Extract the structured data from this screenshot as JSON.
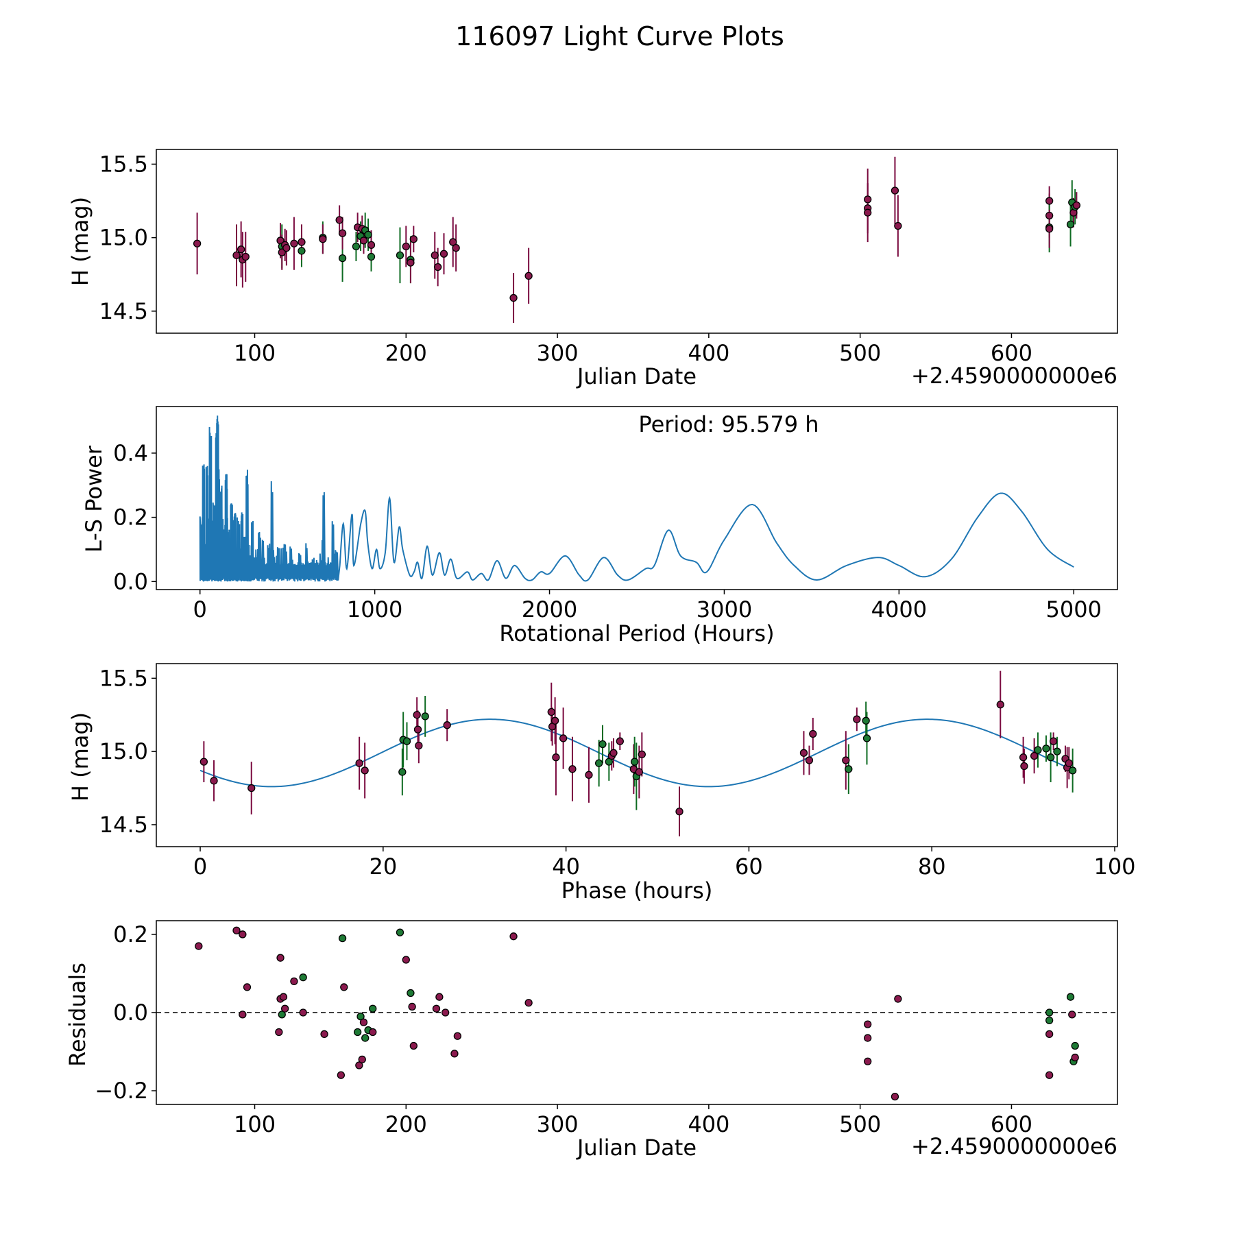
{
  "figure_title": "116097 Light Curve Plots",
  "colors": {
    "maroon": "#8b1a4e",
    "green": "#1e7a35",
    "curve": "#1f77b4",
    "maroon_err": "#7a0a3f",
    "green_err": "#0e6b22"
  },
  "chart_data": [
    {
      "id": "lightcurve",
      "type": "scatter",
      "xlabel": "Julian Date",
      "ylabel": "H (mag)",
      "offset_label": "+2.4590000000e6",
      "xlim": [
        35,
        670
      ],
      "ylim": [
        14.35,
        15.6
      ],
      "xticks": [
        100,
        200,
        300,
        400,
        500,
        600
      ],
      "yticks": [
        14.5,
        15.0,
        15.5
      ],
      "ytick_labels": [
        "14.5",
        "15.0",
        "15.5"
      ],
      "points": [
        [
          62,
          14.96,
          0.21,
          "m"
        ],
        [
          88,
          14.88,
          0.21,
          "m"
        ],
        [
          91,
          14.92,
          0.19,
          "m"
        ],
        [
          92,
          14.85,
          0.19,
          "m"
        ],
        [
          94,
          14.87,
          0.17,
          "m"
        ],
        [
          117,
          14.98,
          0.12,
          "m"
        ],
        [
          118,
          14.94,
          0.15,
          "g"
        ],
        [
          118,
          14.9,
          0.12,
          "m"
        ],
        [
          120,
          14.95,
          0.11,
          "m"
        ],
        [
          121,
          14.93,
          0.12,
          "m"
        ],
        [
          126,
          14.96,
          0.18,
          "m"
        ],
        [
          131,
          14.91,
          0.11,
          "g"
        ],
        [
          131,
          14.97,
          0.12,
          "m"
        ],
        [
          145,
          15.0,
          0.11,
          "g"
        ],
        [
          145,
          14.99,
          0.1,
          "m"
        ],
        [
          156,
          15.12,
          0.1,
          "m"
        ],
        [
          158,
          14.86,
          0.16,
          "g"
        ],
        [
          158,
          15.03,
          0.11,
          "m"
        ],
        [
          167,
          14.94,
          0.1,
          "g"
        ],
        [
          168,
          15.07,
          0.1,
          "m"
        ],
        [
          170,
          15.01,
          0.1,
          "g"
        ],
        [
          171,
          15.06,
          0.09,
          "m"
        ],
        [
          172,
          14.98,
          0.09,
          "m"
        ],
        [
          173,
          15.05,
          0.12,
          "g"
        ],
        [
          175,
          15.02,
          0.11,
          "g"
        ],
        [
          177,
          14.87,
          0.1,
          "g"
        ],
        [
          177,
          14.95,
          0.1,
          "m"
        ],
        [
          196,
          14.88,
          0.19,
          "g"
        ],
        [
          200,
          14.94,
          0.14,
          "m"
        ],
        [
          203,
          14.85,
          0.16,
          "g"
        ],
        [
          203,
          14.83,
          0.14,
          "m"
        ],
        [
          205,
          14.99,
          0.09,
          "m"
        ],
        [
          219,
          14.88,
          0.16,
          "m"
        ],
        [
          221,
          14.8,
          0.13,
          "m"
        ],
        [
          225,
          14.89,
          0.14,
          "m"
        ],
        [
          231,
          14.97,
          0.17,
          "m"
        ],
        [
          233,
          14.93,
          0.16,
          "m"
        ],
        [
          271,
          14.59,
          0.17,
          "m"
        ],
        [
          281,
          14.74,
          0.19,
          "m"
        ],
        [
          505,
          15.26,
          0.21,
          "m"
        ],
        [
          505,
          15.2,
          0.17,
          "m"
        ],
        [
          505,
          15.17,
          0.2,
          "m"
        ],
        [
          523,
          15.32,
          0.23,
          "m"
        ],
        [
          525,
          15.08,
          0.21,
          "m"
        ],
        [
          625,
          15.25,
          0.1,
          "m"
        ],
        [
          625,
          15.15,
          0.15,
          "m"
        ],
        [
          625,
          15.07,
          0.17,
          "g"
        ],
        [
          625,
          15.06,
          0.13,
          "m"
        ],
        [
          639,
          15.09,
          0.15,
          "g"
        ],
        [
          640,
          15.24,
          0.15,
          "g"
        ],
        [
          641,
          15.17,
          0.1,
          "m"
        ],
        [
          642,
          15.21,
          0.12,
          "g"
        ],
        [
          643,
          15.22,
          0.09,
          "m"
        ]
      ]
    },
    {
      "id": "periodogram",
      "type": "line",
      "xlabel": "Rotational Period (Hours)",
      "ylabel": "L-S Power",
      "annotation": "Period: 95.579 h",
      "xlim": [
        -250,
        5250
      ],
      "ylim": [
        -0.025,
        0.545
      ],
      "xticks": [
        0,
        1000,
        2000,
        3000,
        4000,
        5000
      ],
      "yticks": [
        0.0,
        0.2,
        0.4
      ],
      "ytick_labels": [
        "0.0",
        "0.2",
        "0.4"
      ],
      "peaks": [
        [
          20,
          0.37
        ],
        [
          40,
          0.36
        ],
        [
          60,
          0.49
        ],
        [
          80,
          0.25
        ],
        [
          95.6,
          0.48
        ],
        [
          105,
          0.35
        ],
        [
          120,
          0.3
        ],
        [
          100,
          0.52
        ],
        [
          150,
          0.34
        ],
        [
          180,
          0.25
        ],
        [
          200,
          0.22
        ],
        [
          240,
          0.22
        ],
        [
          270,
          0.35
        ],
        [
          300,
          0.21
        ],
        [
          340,
          0.16
        ],
        [
          360,
          0.13
        ],
        [
          390,
          0.12
        ],
        [
          410,
          0.32
        ],
        [
          450,
          0.12
        ],
        [
          490,
          0.1
        ],
        [
          520,
          0.11
        ],
        [
          570,
          0.09
        ],
        [
          610,
          0.12
        ],
        [
          650,
          0.08
        ],
        [
          700,
          0.15
        ],
        [
          710,
          0.29
        ],
        [
          760,
          0.2
        ],
        [
          780,
          0.1
        ]
      ],
      "smooth": [
        [
          800,
          0.05
        ],
        [
          820,
          0.18
        ],
        [
          840,
          0.04
        ],
        [
          870,
          0.21
        ],
        [
          880,
          0.05
        ],
        [
          920,
          0.18
        ],
        [
          945,
          0.22
        ],
        [
          960,
          0.12
        ],
        [
          985,
          0.04
        ],
        [
          1010,
          0.1
        ],
        [
          1030,
          0.04
        ],
        [
          1060,
          0.09
        ],
        [
          1085,
          0.26
        ],
        [
          1110,
          0.06
        ],
        [
          1140,
          0.17
        ],
        [
          1160,
          0.1
        ],
        [
          1200,
          0.02
        ],
        [
          1225,
          0.03
        ],
        [
          1245,
          0.06
        ],
        [
          1270,
          0.01
        ],
        [
          1300,
          0.11
        ],
        [
          1330,
          0.02
        ],
        [
          1370,
          0.09
        ],
        [
          1400,
          0.02
        ],
        [
          1435,
          0.07
        ],
        [
          1470,
          0.01
        ],
        [
          1530,
          0.03
        ],
        [
          1560,
          0.005
        ],
        [
          1610,
          0.025
        ],
        [
          1650,
          0.005
        ],
        [
          1700,
          0.065
        ],
        [
          1750,
          0.01
        ],
        [
          1800,
          0.05
        ],
        [
          1860,
          0.01
        ],
        [
          1900,
          0.005
        ],
        [
          1950,
          0.03
        ],
        [
          2000,
          0.025
        ],
        [
          2090,
          0.08
        ],
        [
          2170,
          0.02
        ],
        [
          2220,
          0.005
        ],
        [
          2310,
          0.075
        ],
        [
          2390,
          0.02
        ],
        [
          2450,
          0.005
        ],
        [
          2550,
          0.04
        ],
        [
          2600,
          0.05
        ],
        [
          2680,
          0.16
        ],
        [
          2750,
          0.08
        ],
        [
          2840,
          0.06
        ],
        [
          2900,
          0.03
        ],
        [
          3000,
          0.13
        ],
        [
          3160,
          0.24
        ],
        [
          3300,
          0.12
        ],
        [
          3400,
          0.05
        ],
        [
          3530,
          0.005
        ],
        [
          3700,
          0.05
        ],
        [
          3880,
          0.075
        ],
        [
          4000,
          0.05
        ],
        [
          4150,
          0.015
        ],
        [
          4300,
          0.07
        ],
        [
          4450,
          0.2
        ],
        [
          4580,
          0.275
        ],
        [
          4700,
          0.22
        ],
        [
          4850,
          0.1
        ],
        [
          5000,
          0.045
        ]
      ]
    },
    {
      "id": "phasefold",
      "type": "scatter",
      "xlabel": "Phase (hours)",
      "ylabel": "H (mag)",
      "xlim": [
        -4.8,
        100.3
      ],
      "ylim": [
        14.35,
        15.6
      ],
      "xticks": [
        0,
        20,
        40,
        60,
        80,
        100
      ],
      "yticks": [
        14.5,
        15.0,
        15.5
      ],
      "ytick_labels": [
        "14.5",
        "15.0",
        "15.5"
      ],
      "model": {
        "mean": 14.99,
        "amplitude": 0.23,
        "phase_peak": 31.7,
        "period": 47.8,
        "x_range": [
          0,
          95.6
        ]
      },
      "points": [
        [
          0.4,
          14.93,
          0.14,
          "m"
        ],
        [
          1.5,
          14.8,
          0.14,
          "m"
        ],
        [
          5.6,
          14.75,
          0.18,
          "m"
        ],
        [
          17.4,
          14.92,
          0.18,
          "m"
        ],
        [
          18.0,
          14.87,
          0.19,
          "m"
        ],
        [
          22.1,
          14.86,
          0.16,
          "g"
        ],
        [
          22.2,
          15.08,
          0.19,
          "g"
        ],
        [
          22.6,
          15.07,
          0.13,
          "g"
        ],
        [
          23.7,
          15.25,
          0.12,
          "m"
        ],
        [
          23.8,
          15.15,
          0.13,
          "m"
        ],
        [
          23.9,
          15.04,
          0.12,
          "m"
        ],
        [
          24.6,
          15.24,
          0.14,
          "g"
        ],
        [
          27.0,
          15.18,
          0.11,
          "m"
        ],
        [
          38.4,
          15.27,
          0.2,
          "m"
        ],
        [
          38.5,
          15.17,
          0.13,
          "m"
        ],
        [
          38.8,
          15.21,
          0.16,
          "m"
        ],
        [
          38.9,
          14.96,
          0.26,
          "m"
        ],
        [
          39.7,
          15.09,
          0.21,
          "m"
        ],
        [
          40.7,
          14.88,
          0.22,
          "m"
        ],
        [
          42.5,
          14.84,
          0.19,
          "m"
        ],
        [
          43.6,
          14.92,
          0.16,
          "g"
        ],
        [
          44.0,
          15.05,
          0.13,
          "g"
        ],
        [
          44.7,
          14.93,
          0.13,
          "g"
        ],
        [
          45.0,
          14.97,
          0.1,
          "m"
        ],
        [
          45.2,
          14.99,
          0.1,
          "m"
        ],
        [
          45.9,
          15.07,
          0.06,
          "m"
        ],
        [
          47.4,
          14.88,
          0.17,
          "m"
        ],
        [
          47.5,
          14.93,
          0.17,
          "g"
        ],
        [
          47.7,
          14.83,
          0.23,
          "g"
        ],
        [
          48.0,
          14.86,
          0.18,
          "m"
        ],
        [
          48.3,
          14.98,
          0.15,
          "m"
        ],
        [
          52.4,
          14.59,
          0.17,
          "m"
        ],
        [
          66.0,
          14.99,
          0.15,
          "m"
        ],
        [
          66.6,
          14.94,
          0.1,
          "m"
        ],
        [
          67.0,
          15.12,
          0.11,
          "m"
        ],
        [
          70.6,
          14.94,
          0.2,
          "m"
        ],
        [
          70.9,
          14.88,
          0.17,
          "g"
        ],
        [
          71.8,
          15.22,
          0.08,
          "m"
        ],
        [
          72.8,
          15.21,
          0.13,
          "g"
        ],
        [
          72.9,
          15.09,
          0.18,
          "g"
        ],
        [
          87.5,
          15.32,
          0.23,
          "m"
        ],
        [
          90.0,
          14.96,
          0.14,
          "m"
        ],
        [
          90.1,
          14.9,
          0.12,
          "m"
        ],
        [
          91.2,
          14.97,
          0.12,
          "m"
        ],
        [
          91.6,
          15.01,
          0.12,
          "g"
        ],
        [
          92.5,
          15.02,
          0.09,
          "g"
        ],
        [
          93.0,
          14.96,
          0.17,
          "g"
        ],
        [
          93.3,
          15.07,
          0.06,
          "m"
        ],
        [
          93.7,
          15.0,
          0.1,
          "g"
        ],
        [
          94.6,
          14.95,
          0.09,
          "m"
        ],
        [
          94.8,
          14.89,
          0.14,
          "m"
        ],
        [
          95.0,
          14.92,
          0.11,
          "m"
        ],
        [
          95.4,
          14.87,
          0.15,
          "g"
        ]
      ]
    },
    {
      "id": "residuals",
      "type": "scatter",
      "xlabel": "Julian Date",
      "ylabel": "Residuals",
      "offset_label": "+2.4590000000e6",
      "xlim": [
        35,
        670
      ],
      "ylim": [
        -0.235,
        0.235
      ],
      "xticks": [
        100,
        200,
        300,
        400,
        500,
        600
      ],
      "yticks": [
        -0.2,
        0.0,
        0.2
      ],
      "ytick_labels": [
        "−0.2",
        "0.0",
        "0.2"
      ],
      "zero_line": 0,
      "points": [
        [
          63,
          0.17,
          "m"
        ],
        [
          88,
          0.21,
          "m"
        ],
        [
          92,
          0.2,
          "m"
        ],
        [
          92,
          -0.005,
          "m"
        ],
        [
          95,
          0.065,
          "m"
        ],
        [
          116,
          -0.05,
          "m"
        ],
        [
          117,
          0.14,
          "m"
        ],
        [
          117,
          0.035,
          "m"
        ],
        [
          118,
          -0.005,
          "g"
        ],
        [
          119,
          0.04,
          "m"
        ],
        [
          120,
          0.01,
          "m"
        ],
        [
          126,
          0.08,
          "m"
        ],
        [
          132,
          0.09,
          "g"
        ],
        [
          132,
          0.0,
          "m"
        ],
        [
          146,
          -0.055,
          "m"
        ],
        [
          157,
          -0.16,
          "m"
        ],
        [
          158,
          0.19,
          "g"
        ],
        [
          159,
          0.065,
          "m"
        ],
        [
          168,
          -0.05,
          "g"
        ],
        [
          169,
          -0.135,
          "m"
        ],
        [
          170,
          -0.01,
          "g"
        ],
        [
          171,
          -0.12,
          "m"
        ],
        [
          172,
          -0.025,
          "m"
        ],
        [
          173,
          -0.065,
          "g"
        ],
        [
          175,
          -0.045,
          "g"
        ],
        [
          178,
          0.01,
          "g"
        ],
        [
          178,
          -0.05,
          "m"
        ],
        [
          196,
          0.205,
          "g"
        ],
        [
          200,
          0.135,
          "m"
        ],
        [
          203,
          0.05,
          "g"
        ],
        [
          204,
          0.015,
          "m"
        ],
        [
          205,
          -0.085,
          "m"
        ],
        [
          220,
          0.01,
          "m"
        ],
        [
          222,
          0.04,
          "m"
        ],
        [
          226,
          0.0,
          "m"
        ],
        [
          232,
          -0.105,
          "m"
        ],
        [
          234,
          -0.06,
          "m"
        ],
        [
          271,
          0.195,
          "m"
        ],
        [
          281,
          0.025,
          "m"
        ],
        [
          505,
          -0.03,
          "m"
        ],
        [
          505,
          -0.065,
          "m"
        ],
        [
          505,
          -0.125,
          "m"
        ],
        [
          523,
          -0.215,
          "m"
        ],
        [
          525,
          0.035,
          "m"
        ],
        [
          625,
          0.0,
          "g"
        ],
        [
          625,
          -0.02,
          "g"
        ],
        [
          625,
          -0.055,
          "m"
        ],
        [
          625,
          -0.16,
          "m"
        ],
        [
          639,
          0.04,
          "g"
        ],
        [
          640,
          -0.005,
          "m"
        ],
        [
          641,
          -0.125,
          "g"
        ],
        [
          642,
          -0.085,
          "g"
        ],
        [
          642,
          -0.115,
          "m"
        ]
      ]
    }
  ]
}
